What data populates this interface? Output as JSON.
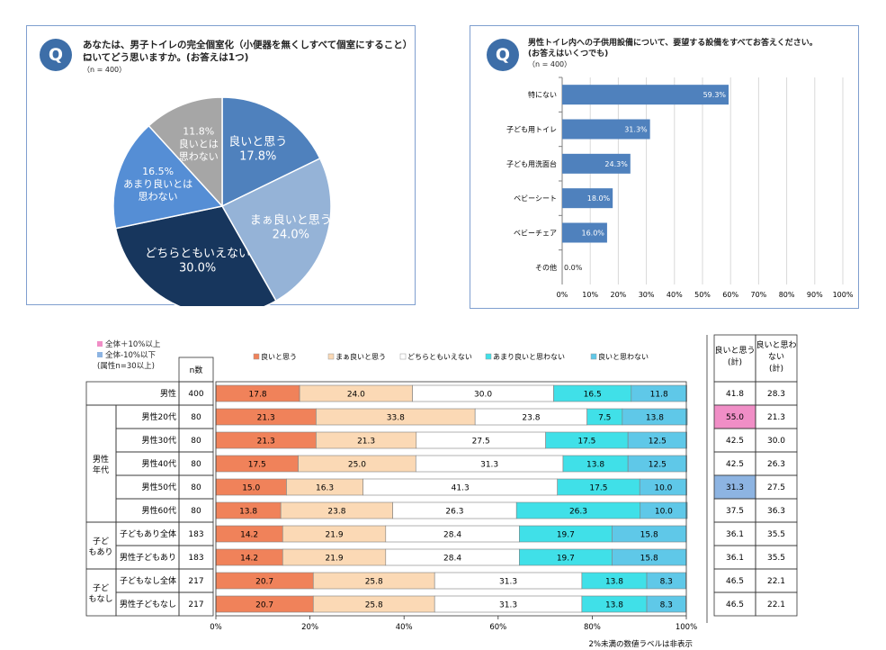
{
  "q1": {
    "badge": "Q",
    "question_line1": "あなたは、男子トイレの完全個室化（小便器を無くしすべて個室にすること）に",
    "question_line2": "ついてどう思いますか。(お答えは1つ)",
    "n": "（n = 400）",
    "chart_data": {
      "type": "pie",
      "slices": [
        {
          "label": "良いと思う",
          "value": 17.8,
          "value_text": "17.8%",
          "color": "#4f81bd"
        },
        {
          "label": "まぁ良いと思う",
          "value": 24.0,
          "value_text": "24.0%",
          "color": "#95b3d7"
        },
        {
          "label": "どちらともいえない",
          "value": 30.0,
          "value_text": "30.0%",
          "color": "#17365d"
        },
        {
          "label": "あまり良いとは思わない",
          "value": 16.5,
          "value_text": "16.5%",
          "color": "#558ed5"
        },
        {
          "label": "良いとは思わない",
          "value": 11.8,
          "value_text": "11.8%",
          "color": "#a6a6a6"
        }
      ]
    }
  },
  "q2": {
    "badge": "Q",
    "question_line1": "男性トイレ内への子供用設備について、要望する設備をすべてお答えください。",
    "question_line2": "(お答えはいくつでも)",
    "n": "（n = 400）",
    "chart_data": {
      "type": "bar",
      "orientation": "horizontal",
      "categories": [
        "特にない",
        "子ども用トイレ",
        "子ども用洗面台",
        "ベビーシート",
        "ベビーチェア",
        "その他"
      ],
      "values": [
        59.3,
        31.3,
        24.3,
        18.0,
        16.0,
        0.0
      ],
      "value_labels": [
        "59.3%",
        "31.3%",
        "24.3%",
        "18.0%",
        "16.0%",
        "0.0%"
      ],
      "xlim": [
        0,
        100
      ],
      "xticks": [
        "0%",
        "10%",
        "20%",
        "30%",
        "40%",
        "50%",
        "60%",
        "70%",
        "80%",
        "90%",
        "100%"
      ],
      "bar_color": "#4f81bd"
    }
  },
  "q3": {
    "highlight_legend": [
      {
        "text": "全体＋10%以上",
        "color": "#f08ec6"
      },
      {
        "text": "全体-10%以下",
        "color": "#8db4e2"
      }
    ],
    "highlight_note": "(属性n=30以上)",
    "n_header": "n数",
    "col_header_1": "良いと思う(計)",
    "col_header_2": "良いと思わない(計)",
    "footnote": "2%未満の数値ラベルは非表示",
    "groups": [
      {
        "label": "男性年代"
      },
      {
        "label": "子どもあり"
      },
      {
        "label": "子どもなし"
      }
    ],
    "chart_data": {
      "type": "bar",
      "stacked": true,
      "orientation": "horizontal",
      "series_names": [
        "良いと思う",
        "まぁ良いと思う",
        "どちらともいえない",
        "あまり良いと思わない",
        "良いと思わない"
      ],
      "series_colors": [
        "#f0825a",
        "#fbd9b5",
        "#ffffff",
        "#40e0e8",
        "#5fc8e8"
      ],
      "xticks": [
        "0%",
        "20%",
        "40%",
        "60%",
        "80%",
        "100%"
      ],
      "rows": [
        {
          "label": "男性",
          "n": "400",
          "values": [
            17.8,
            24.0,
            30.0,
            16.5,
            11.8
          ],
          "labels": [
            "17.8",
            "24.0",
            "30.0",
            "16.5",
            "11.8"
          ],
          "good": "41.8",
          "notgood": "28.3",
          "good_hl": "",
          "notgood_hl": ""
        },
        {
          "label": "男性20代",
          "n": "80",
          "values": [
            21.3,
            33.8,
            23.8,
            7.5,
            13.8
          ],
          "labels": [
            "21.3",
            "33.8",
            "23.8",
            "7.5",
            "13.8"
          ],
          "good": "55.0",
          "notgood": "21.3",
          "good_hl": "#f08ec6",
          "notgood_hl": ""
        },
        {
          "label": "男性30代",
          "n": "80",
          "values": [
            21.3,
            21.3,
            27.5,
            17.5,
            12.5
          ],
          "labels": [
            "21.3",
            "21.3",
            "27.5",
            "17.5",
            "12.5"
          ],
          "good": "42.5",
          "notgood": "30.0",
          "good_hl": "",
          "notgood_hl": ""
        },
        {
          "label": "男性40代",
          "n": "80",
          "values": [
            17.5,
            25.0,
            31.3,
            13.8,
            12.5
          ],
          "labels": [
            "17.5",
            "25.0",
            "31.3",
            "13.8",
            "12.5"
          ],
          "good": "42.5",
          "notgood": "26.3",
          "good_hl": "",
          "notgood_hl": ""
        },
        {
          "label": "男性50代",
          "n": "80",
          "values": [
            15.0,
            16.3,
            41.3,
            17.5,
            10.0
          ],
          "labels": [
            "15.0",
            "16.3",
            "41.3",
            "17.5",
            "10.0"
          ],
          "good": "31.3",
          "notgood": "27.5",
          "good_hl": "#8db4e2",
          "notgood_hl": ""
        },
        {
          "label": "男性60代",
          "n": "80",
          "values": [
            13.8,
            23.8,
            26.3,
            26.3,
            10.0
          ],
          "labels": [
            "13.8",
            "23.8",
            "26.3",
            "26.3",
            "10.0"
          ],
          "good": "37.5",
          "notgood": "36.3",
          "good_hl": "",
          "notgood_hl": ""
        },
        {
          "label": "子どもあり全体",
          "n": "183",
          "values": [
            14.2,
            21.9,
            28.4,
            19.7,
            15.8
          ],
          "labels": [
            "14.2",
            "21.9",
            "28.4",
            "19.7",
            "15.8"
          ],
          "good": "36.1",
          "notgood": "35.5",
          "good_hl": "",
          "notgood_hl": ""
        },
        {
          "label": "男性子どもあり",
          "n": "183",
          "values": [
            14.2,
            21.9,
            28.4,
            19.7,
            15.8
          ],
          "labels": [
            "14.2",
            "21.9",
            "28.4",
            "19.7",
            "15.8"
          ],
          "good": "36.1",
          "notgood": "35.5",
          "good_hl": "",
          "notgood_hl": ""
        },
        {
          "label": "子どもなし全体",
          "n": "217",
          "values": [
            20.7,
            25.8,
            31.3,
            13.8,
            8.3
          ],
          "labels": [
            "20.7",
            "25.8",
            "31.3",
            "13.8",
            "8.3"
          ],
          "good": "46.5",
          "notgood": "22.1",
          "good_hl": "",
          "notgood_hl": ""
        },
        {
          "label": "男性子どもなし",
          "n": "217",
          "values": [
            20.7,
            25.8,
            31.3,
            13.8,
            8.3
          ],
          "labels": [
            "20.7",
            "25.8",
            "31.3",
            "13.8",
            "8.3"
          ],
          "good": "46.5",
          "notgood": "22.1",
          "good_hl": "",
          "notgood_hl": ""
        }
      ]
    }
  }
}
